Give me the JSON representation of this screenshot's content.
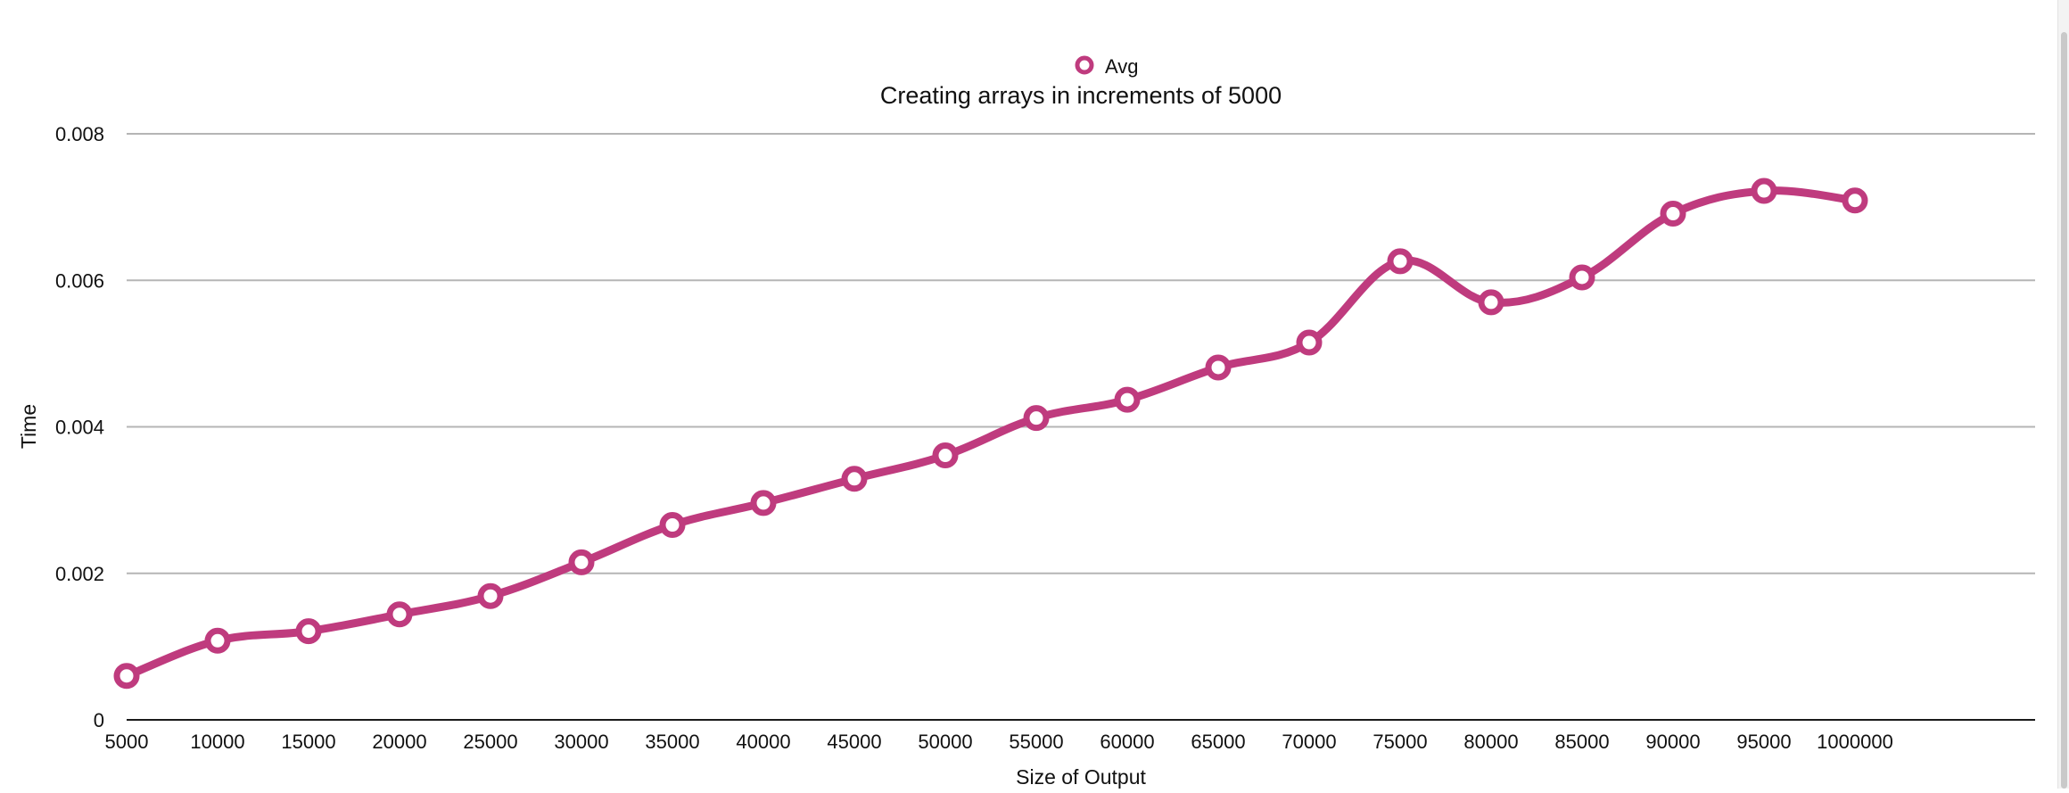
{
  "chart_data": {
    "type": "line",
    "title": "Creating arrays in increments of 5000",
    "xlabel": "Size of Output",
    "ylabel": "Time",
    "categories": [
      "5000",
      "10000",
      "15000",
      "20000",
      "25000",
      "30000",
      "35000",
      "40000",
      "45000",
      "50000",
      "55000",
      "60000",
      "65000",
      "70000",
      "75000",
      "80000",
      "85000",
      "90000",
      "95000",
      "1000000"
    ],
    "series": [
      {
        "name": "Avg",
        "color": "#bf3b7e",
        "values": [
          0.0006,
          0.00108,
          0.00121,
          0.00144,
          0.00169,
          0.00215,
          0.00266,
          0.00296,
          0.00329,
          0.00361,
          0.00412,
          0.00437,
          0.00481,
          0.00515,
          0.00626,
          0.0057,
          0.00604,
          0.00691,
          0.00722,
          0.00709
        ]
      }
    ],
    "y_ticks": [
      "0",
      "0.002",
      "0.004",
      "0.006",
      "0.008"
    ],
    "y_tick_values": [
      0,
      0.002,
      0.004,
      0.006,
      0.008
    ],
    "ylim": [
      0,
      0.008
    ],
    "grid": true,
    "legend_position": "top-center"
  }
}
